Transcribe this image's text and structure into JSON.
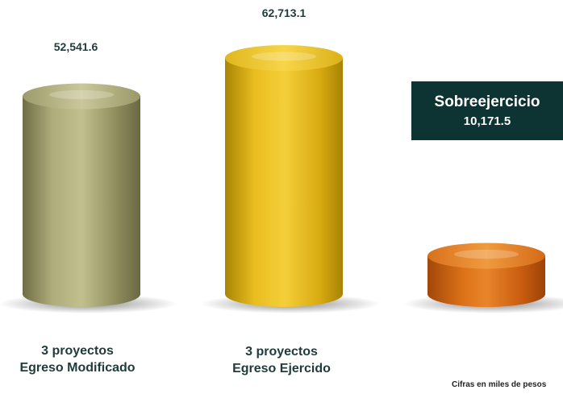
{
  "chart_data": {
    "type": "bar",
    "categories": [
      "3 proyectos Egreso Modificado",
      "3 proyectos Egreso Ejercido",
      "Sobreejercicio"
    ],
    "values": [
      52541.6,
      62713.1,
      10171.5
    ],
    "value_labels": [
      "52,541.6",
      "62,713.1",
      "10,171.5"
    ],
    "category_lines": [
      [
        "3 proyectos",
        "Egreso Modificado"
      ],
      [
        "3 proyectos",
        "Egreso Ejercido"
      ],
      []
    ],
    "colors": [
      "#9c9a68",
      "#e0b51c",
      "#d46a14"
    ],
    "callout": {
      "title": "Sobreejercicio",
      "value": "10,171.5"
    },
    "note": "Cifras en miles de pesos",
    "grid": false
  }
}
